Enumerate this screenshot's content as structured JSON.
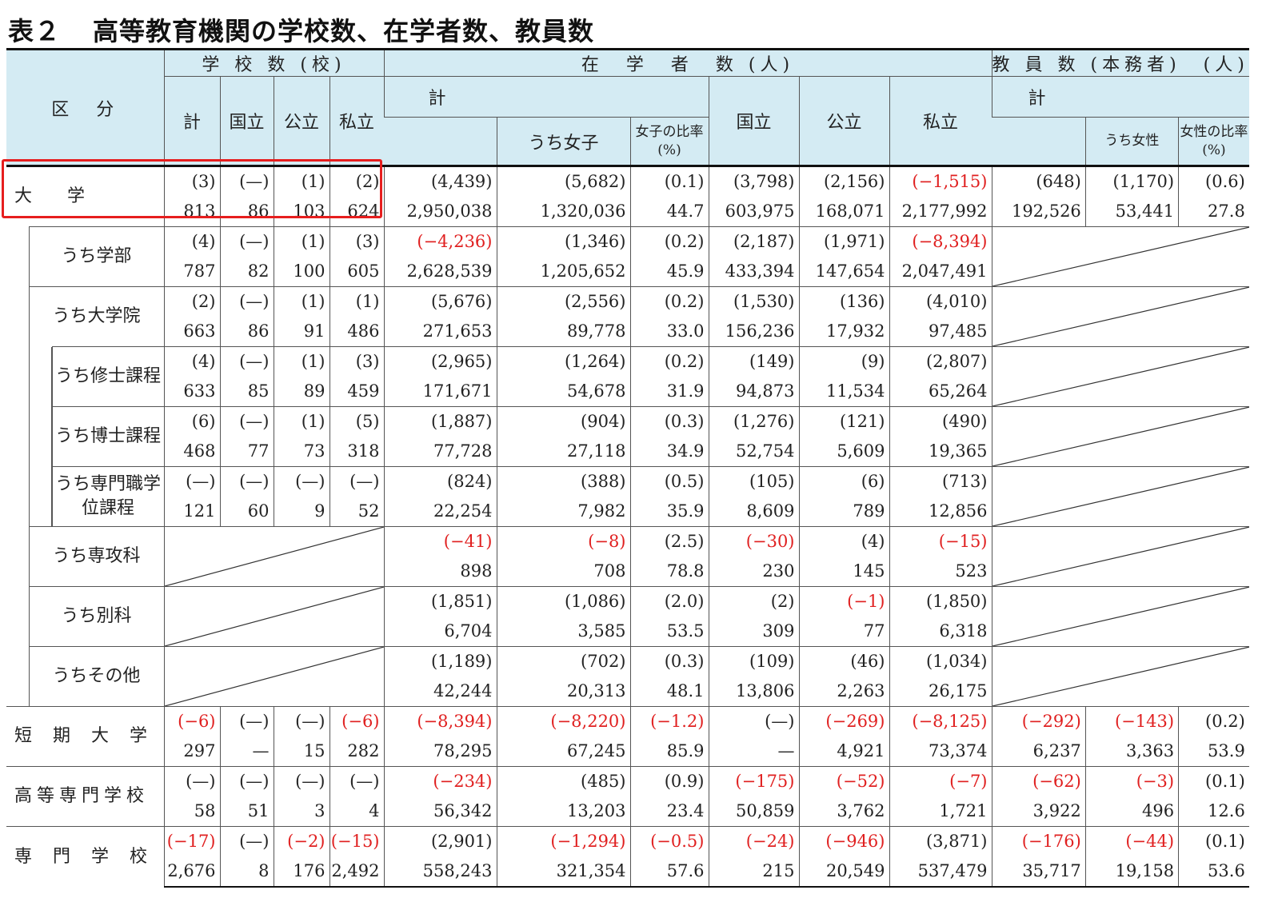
{
  "title": {
    "number": "表２",
    "text": "高等教育機関の学校数、在学者数、教員数"
  },
  "header": {
    "kubun": "区　分",
    "schools": "学 校 数 (校)",
    "students": "在　学　者　数 (人)",
    "teachers": "教 員 数 (本務者)　(人)",
    "kei": "計",
    "kokuritsu": "国立",
    "kouritsu": "公立",
    "shiritsu": "私立",
    "uchi_joshi": "うち女子",
    "joshi_ratio": "女子の比率(%)",
    "uchi_josei": "うち女性",
    "josei_ratio": "女性の比率(%)"
  },
  "rows": [
    {
      "label": "大　　学",
      "kind": "main",
      "diag_school": false,
      "diag_teacher": false,
      "change": [
        "(3)",
        "(—)",
        "(1)",
        "(2)",
        "(4,439)",
        "(5,682)",
        "(0.1)",
        "(3,798)",
        "(2,156)",
        "(−1,515)",
        "(648)",
        "(1,170)",
        "(0.6)"
      ],
      "value": [
        "813",
        "86",
        "103",
        "624",
        "2,950,038",
        "1,320,036",
        "44.7",
        "603,975",
        "168,071",
        "2,177,992",
        "192,526",
        "53,441",
        "27.8"
      ]
    },
    {
      "label": "うち学部",
      "kind": "sub1",
      "diag_school": false,
      "diag_teacher": true,
      "change": [
        "(4)",
        "(—)",
        "(1)",
        "(3)",
        "(−4,236)",
        "(1,346)",
        "(0.2)",
        "(2,187)",
        "(1,971)",
        "(−8,394)"
      ],
      "value": [
        "787",
        "82",
        "100",
        "605",
        "2,628,539",
        "1,205,652",
        "45.9",
        "433,394",
        "147,654",
        "2,047,491"
      ]
    },
    {
      "label": "うち大学院",
      "kind": "sub1",
      "diag_school": false,
      "diag_teacher": true,
      "change": [
        "(2)",
        "(—)",
        "(1)",
        "(1)",
        "(5,676)",
        "(2,556)",
        "(0.2)",
        "(1,530)",
        "(136)",
        "(4,010)"
      ],
      "value": [
        "663",
        "86",
        "91",
        "486",
        "271,653",
        "89,778",
        "33.0",
        "156,236",
        "17,932",
        "97,485"
      ]
    },
    {
      "label": "うち修士課程",
      "kind": "sub2",
      "diag_school": false,
      "diag_teacher": true,
      "change": [
        "(4)",
        "(—)",
        "(1)",
        "(3)",
        "(2,965)",
        "(1,264)",
        "(0.2)",
        "(149)",
        "(9)",
        "(2,807)"
      ],
      "value": [
        "633",
        "85",
        "89",
        "459",
        "171,671",
        "54,678",
        "31.9",
        "94,873",
        "11,534",
        "65,264"
      ]
    },
    {
      "label": "うち博士課程",
      "kind": "sub2",
      "diag_school": false,
      "diag_teacher": true,
      "change": [
        "(6)",
        "(—)",
        "(1)",
        "(5)",
        "(1,887)",
        "(904)",
        "(0.3)",
        "(1,276)",
        "(121)",
        "(490)"
      ],
      "value": [
        "468",
        "77",
        "73",
        "318",
        "77,728",
        "27,118",
        "34.9",
        "52,754",
        "5,609",
        "19,365"
      ]
    },
    {
      "label": "うち専門職学位課程",
      "kind": "sub2",
      "diag_school": false,
      "diag_teacher": true,
      "change": [
        "(—)",
        "(—)",
        "(—)",
        "(—)",
        "(824)",
        "(388)",
        "(0.5)",
        "(105)",
        "(6)",
        "(713)"
      ],
      "value": [
        "121",
        "60",
        "9",
        "52",
        "22,254",
        "7,982",
        "35.9",
        "8,609",
        "789",
        "12,856"
      ]
    },
    {
      "label": "うち専攻科",
      "kind": "sub1",
      "diag_school": true,
      "diag_teacher": true,
      "change": [
        "(−41)",
        "(−8)",
        "(2.5)",
        "(−30)",
        "(4)",
        "(−15)"
      ],
      "value": [
        "898",
        "708",
        "78.8",
        "230",
        "145",
        "523"
      ]
    },
    {
      "label": "うち別科",
      "kind": "sub1",
      "diag_school": true,
      "diag_teacher": true,
      "change": [
        "(1,851)",
        "(1,086)",
        "(2.0)",
        "(2)",
        "(−1)",
        "(1,850)"
      ],
      "value": [
        "6,704",
        "3,585",
        "53.5",
        "309",
        "77",
        "6,318"
      ]
    },
    {
      "label": "うちその他",
      "kind": "sub1",
      "diag_school": true,
      "diag_teacher": true,
      "change": [
        "(1,189)",
        "(702)",
        "(0.3)",
        "(109)",
        "(46)",
        "(1,034)"
      ],
      "value": [
        "42,244",
        "20,313",
        "48.1",
        "13,806",
        "2,263",
        "26,175"
      ]
    },
    {
      "label": "短　期　大　学",
      "kind": "main",
      "diag_school": false,
      "diag_teacher": false,
      "change": [
        "(−6)",
        "(—)",
        "(—)",
        "(−6)",
        "(−8,394)",
        "(−8,220)",
        "(−1.2)",
        "(—)",
        "(−269)",
        "(−8,125)",
        "(−292)",
        "(−143)",
        "(0.2)"
      ],
      "value": [
        "297",
        "—",
        "15",
        "282",
        "78,295",
        "67,245",
        "85.9",
        "—",
        "4,921",
        "73,374",
        "6,237",
        "3,363",
        "53.9"
      ]
    },
    {
      "label": "高等専門学校",
      "kind": "main",
      "diag_school": false,
      "diag_teacher": false,
      "change": [
        "(—)",
        "(—)",
        "(—)",
        "(—)",
        "(−234)",
        "(485)",
        "(0.9)",
        "(−175)",
        "(−52)",
        "(−7)",
        "(−62)",
        "(−3)",
        "(0.1)"
      ],
      "value": [
        "58",
        "51",
        "3",
        "4",
        "56,342",
        "13,203",
        "23.4",
        "50,859",
        "3,762",
        "1,721",
        "3,922",
        "496",
        "12.6"
      ]
    },
    {
      "label": "専　門　学　校",
      "kind": "main",
      "diag_school": false,
      "diag_teacher": false,
      "change": [
        "(−17)",
        "(—)",
        "(−2)",
        "(−15)",
        "(2,901)",
        "(−1,294)",
        "(−0.5)",
        "(−24)",
        "(−946)",
        "(3,871)",
        "(−176)",
        "(−44)",
        "(0.1)"
      ],
      "value": [
        "2,676",
        "8",
        "176",
        "2,492",
        "558,243",
        "321,354",
        "57.6",
        "215",
        "20,549",
        "537,479",
        "35,717",
        "19,158",
        "53.6"
      ]
    }
  ],
  "colors": {
    "header_bg": "#d4ebf3",
    "negative": "#e02020",
    "highlight": "#e61e1e"
  }
}
